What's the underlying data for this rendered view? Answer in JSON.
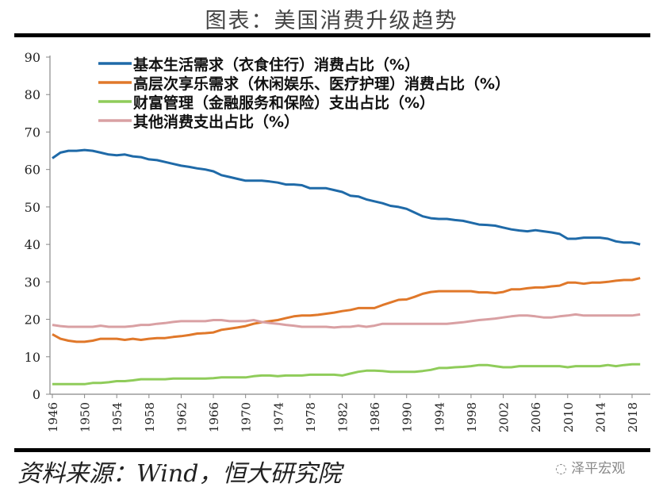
{
  "title": "图表：美国消费升级趋势",
  "source": "资料来源：Wind，恒大研究院",
  "watermark": "泽平宏观",
  "chart_data": {
    "type": "line",
    "title": "图表：美国消费升级趋势",
    "xlabel": "",
    "ylabel": "",
    "ylim": [
      0,
      90
    ],
    "yticks": [
      0,
      10,
      20,
      30,
      40,
      50,
      60,
      70,
      80,
      90
    ],
    "xticks": [
      1946,
      1950,
      1954,
      1958,
      1962,
      1966,
      1970,
      1974,
      1978,
      1982,
      1986,
      1990,
      1994,
      1998,
      2002,
      2006,
      2010,
      2014,
      2018
    ],
    "grid": false,
    "legend": "top-left",
    "x": [
      1946,
      1947,
      1948,
      1949,
      1950,
      1951,
      1952,
      1953,
      1954,
      1955,
      1956,
      1957,
      1958,
      1959,
      1960,
      1961,
      1962,
      1963,
      1964,
      1965,
      1966,
      1967,
      1968,
      1969,
      1970,
      1971,
      1972,
      1973,
      1974,
      1975,
      1976,
      1977,
      1978,
      1979,
      1980,
      1981,
      1982,
      1983,
      1984,
      1985,
      1986,
      1987,
      1988,
      1989,
      1990,
      1991,
      1992,
      1993,
      1994,
      1995,
      1996,
      1997,
      1998,
      1999,
      2000,
      2001,
      2002,
      2003,
      2004,
      2005,
      2006,
      2007,
      2008,
      2009,
      2010,
      2011,
      2012,
      2013,
      2014,
      2015,
      2016,
      2017,
      2018,
      2019
    ],
    "series": [
      {
        "name": "基本生活需求（衣食住行）消费占比（%）",
        "color": "#1f6aa8",
        "values": [
          63,
          64.5,
          65,
          65,
          65.2,
          65,
          64.5,
          64,
          63.8,
          64,
          63.5,
          63.3,
          62.7,
          62.5,
          62,
          61.5,
          61,
          60.7,
          60.3,
          60,
          59.5,
          58.5,
          58,
          57.5,
          57,
          57,
          57,
          56.8,
          56.5,
          56,
          56,
          55.8,
          55,
          55,
          55,
          54.5,
          54,
          53,
          52.8,
          52,
          51.5,
          51,
          50.3,
          50,
          49.5,
          48.5,
          47.5,
          47,
          46.8,
          46.8,
          46.5,
          46.3,
          45.8,
          45.3,
          45.2,
          45,
          44.5,
          44,
          43.7,
          43.5,
          43.8,
          43.5,
          43.2,
          42.8,
          41.5,
          41.5,
          41.8,
          41.8,
          41.8,
          41.5,
          40.8,
          40.5,
          40.5,
          40
        ]
      },
      {
        "name": "高层次享乐需求（休闲娱乐、医疗护理）消费占比（%）",
        "color": "#e0782a",
        "values": [
          16,
          14.8,
          14.3,
          14,
          14,
          14.3,
          14.8,
          14.8,
          14.8,
          14.5,
          14.8,
          14.5,
          14.8,
          15,
          15,
          15.3,
          15.5,
          15.8,
          16.2,
          16.3,
          16.5,
          17.2,
          17.5,
          17.8,
          18.2,
          18.8,
          19.2,
          19.5,
          19.8,
          20.3,
          20.8,
          21,
          21,
          21.2,
          21.5,
          21.8,
          22.2,
          22.5,
          23,
          23,
          23,
          23.8,
          24.5,
          25.2,
          25.3,
          26,
          26.8,
          27.3,
          27.5,
          27.5,
          27.5,
          27.5,
          27.5,
          27.2,
          27.2,
          27,
          27.3,
          28,
          28,
          28.3,
          28.5,
          28.5,
          28.8,
          29,
          29.8,
          29.8,
          29.5,
          29.8,
          29.8,
          30,
          30.3,
          30.5,
          30.5,
          31
        ]
      },
      {
        "name": "财富管理（金融服务和保险）支出占比（%）",
        "color": "#8fcc5a",
        "values": [
          2.7,
          2.7,
          2.7,
          2.7,
          2.7,
          3,
          3,
          3.2,
          3.5,
          3.5,
          3.7,
          4,
          4,
          4,
          4,
          4.2,
          4.2,
          4.2,
          4.2,
          4.2,
          4.3,
          4.5,
          4.5,
          4.5,
          4.5,
          4.8,
          5,
          5,
          4.8,
          5,
          5,
          5,
          5.2,
          5.2,
          5.2,
          5.2,
          5,
          5.5,
          6,
          6.3,
          6.3,
          6.2,
          6,
          6,
          6,
          6,
          6.2,
          6.5,
          7,
          7,
          7.2,
          7.3,
          7.5,
          7.8,
          7.8,
          7.5,
          7.2,
          7.2,
          7.5,
          7.5,
          7.5,
          7.5,
          7.5,
          7.5,
          7.2,
          7.5,
          7.5,
          7.5,
          7.5,
          7.8,
          7.5,
          7.8,
          8,
          8
        ]
      },
      {
        "name": "其他消费支出占比（%）",
        "color": "#d9a0a3",
        "values": [
          18.5,
          18.2,
          18,
          18,
          18,
          18,
          18.3,
          18,
          18,
          18,
          18.2,
          18.5,
          18.5,
          18.8,
          19,
          19.3,
          19.5,
          19.5,
          19.5,
          19.5,
          19.8,
          19.8,
          19.5,
          19.5,
          19.5,
          19.8,
          19.3,
          19,
          18.8,
          18.5,
          18.3,
          18,
          18,
          18,
          18,
          17.8,
          18,
          18,
          18.3,
          18,
          18.3,
          18.8,
          18.8,
          18.8,
          18.8,
          18.8,
          18.8,
          18.8,
          18.8,
          18.8,
          19,
          19.2,
          19.5,
          19.8,
          20,
          20.2,
          20.5,
          20.8,
          21,
          21,
          20.8,
          20.5,
          20.5,
          20.8,
          21,
          21.3,
          21,
          21,
          21,
          21,
          21,
          21,
          21,
          21.3
        ]
      }
    ]
  }
}
